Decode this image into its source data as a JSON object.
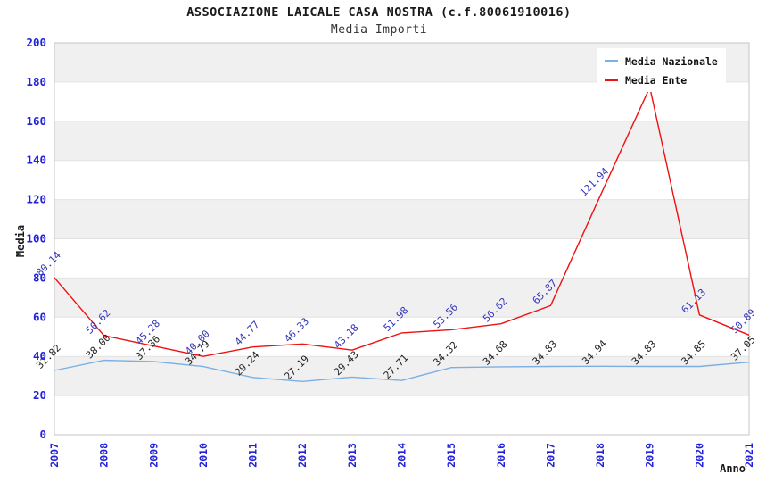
{
  "header": {
    "title": "ASSOCIAZIONE LAICALE CASA NOSTRA (c.f.80061910016)",
    "subtitle": "Media Importi"
  },
  "legend": {
    "items": [
      {
        "label": "Media Nazionale",
        "color": "#7cb0e2"
      },
      {
        "label": "Media Ente",
        "color": "#ee1111"
      }
    ]
  },
  "axes": {
    "y_title": "Media",
    "x_title": "Anno",
    "tick_color": "#2222dd",
    "y_ticks": [
      0,
      20,
      40,
      60,
      80,
      100,
      120,
      140,
      160,
      180,
      200
    ]
  },
  "colors": {
    "band_gray": "#f0f0f0",
    "band_white": "#ffffff",
    "gridline": "#e2e2e2",
    "plot_border": "#c4c4c4",
    "naz_label": "#222222",
    "ente_label": "#3333bb"
  },
  "chart_data": {
    "type": "line",
    "title": "ASSOCIAZIONE LAICALE CASA NOSTRA (c.f.80061910016)",
    "subtitle": "Media Importi",
    "xlabel": "Anno",
    "ylabel": "Media",
    "ylim": [
      0,
      200
    ],
    "grid": "horizontal-bands",
    "legend_position": "top-right",
    "x": [
      2007,
      2008,
      2009,
      2010,
      2011,
      2012,
      2013,
      2014,
      2015,
      2016,
      2017,
      2018,
      2019,
      2020,
      2021
    ],
    "series": [
      {
        "name": "Media Nazionale",
        "color": "#7cb0e2",
        "label_color": "#222222",
        "values": [
          32.82,
          38.0,
          37.36,
          34.79,
          29.24,
          27.19,
          29.43,
          27.71,
          34.32,
          34.68,
          34.83,
          34.94,
          34.83,
          34.85,
          37.05
        ],
        "labels": [
          "32.82",
          "38.00",
          "37.36",
          "34.79",
          "29.24",
          "27.19",
          "29.43",
          "27.71",
          "34.32",
          "34.68",
          "34.83",
          "34.94",
          "34.83",
          "34.85",
          "37.05"
        ]
      },
      {
        "name": "Media Ente",
        "color": "#ee1111",
        "label_color": "#3333bb",
        "values": [
          80.14,
          50.62,
          45.28,
          40.0,
          44.77,
          46.33,
          43.18,
          51.98,
          53.56,
          56.62,
          65.87,
          121.94,
          177.3,
          61.13,
          50.89
        ],
        "labels": [
          "80.14",
          "50.62",
          "45.28",
          "40.00",
          "44.77",
          "46.33",
          "43.18",
          "51.98",
          "53.56",
          "56.62",
          "65.87",
          "121.94",
          "",
          "61.13",
          "50.89"
        ]
      }
    ],
    "notes": "2019 Media Ente point label is hidden behind the legend box; its value is estimated from the plotted line."
  }
}
